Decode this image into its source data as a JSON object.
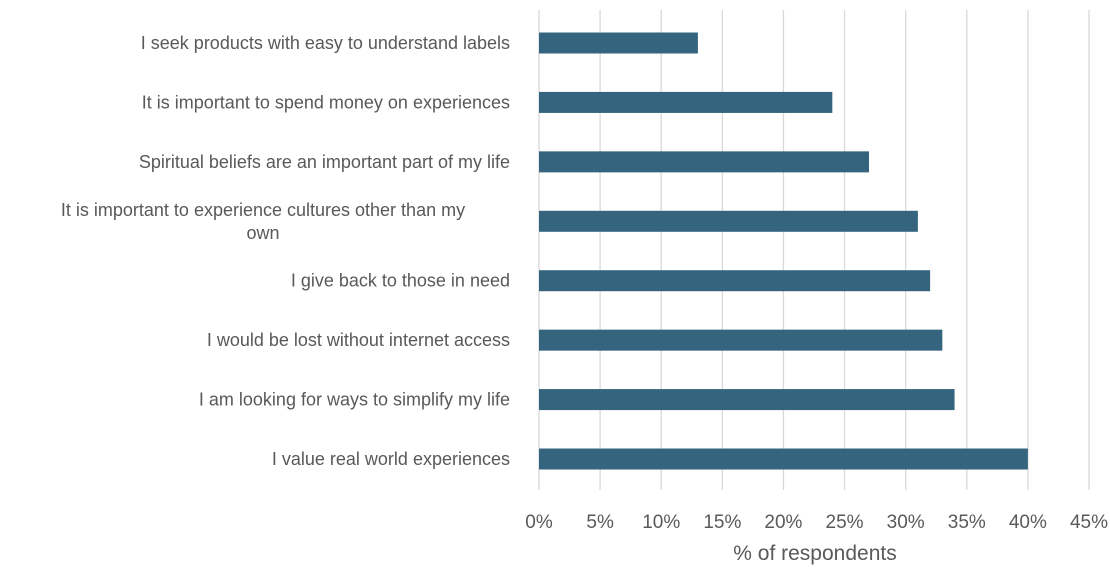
{
  "chart_data": {
    "type": "bar",
    "orientation": "horizontal",
    "categories": [
      "I seek products with easy to understand labels",
      "It is important to spend money on experiences",
      "Spiritual beliefs are an important part of my life",
      "It is important to experience cultures other than my own",
      "I give back to those in need",
      "I would be lost without internet access",
      "I am looking for ways to simplify my life",
      "I value real world experiences"
    ],
    "values": [
      13,
      24,
      27,
      31,
      32,
      33,
      34,
      40
    ],
    "xlabel": "% of respondents",
    "ylabel": "",
    "xlim": [
      0,
      45
    ],
    "ticks": [
      "0%",
      "5%",
      "10%",
      "15%",
      "20%",
      "25%",
      "30%",
      "35%",
      "40%",
      "45%"
    ],
    "grid": "vertical",
    "bar_color": "#35647e"
  }
}
